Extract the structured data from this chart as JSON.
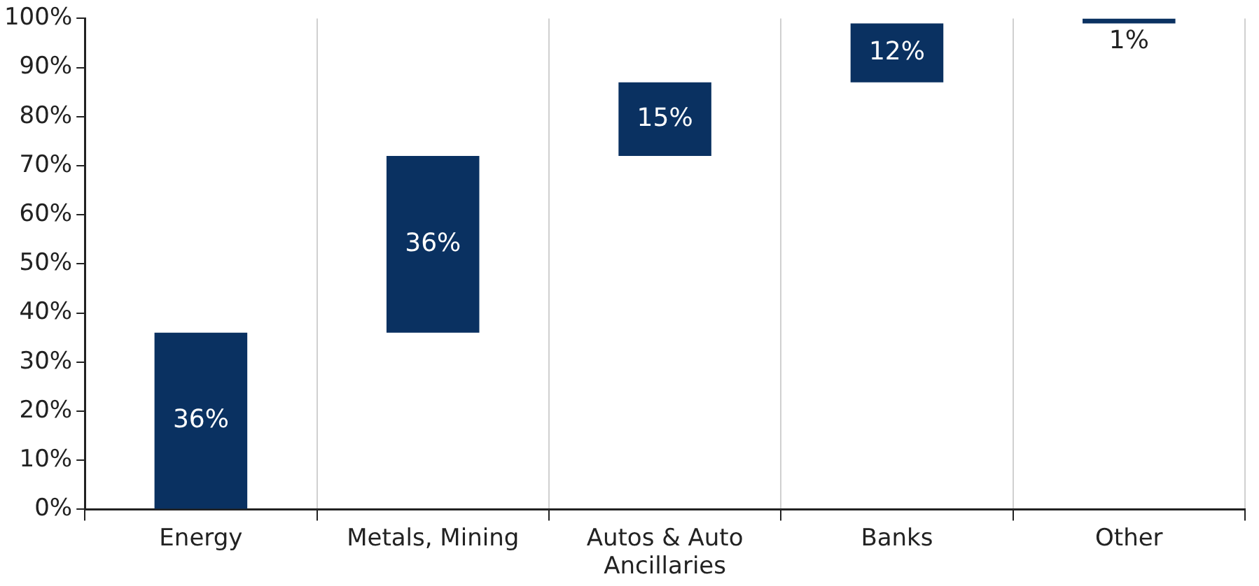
{
  "chart_data": {
    "type": "bar",
    "categories": [
      "Energy",
      "Metals, Mining",
      "Autos & Auto Ancillaries",
      "Banks",
      "Other"
    ],
    "base": [
      0,
      36,
      72,
      87,
      99
    ],
    "values": [
      36,
      36,
      15,
      12,
      1
    ],
    "color": "#0a3161",
    "value_labels": [
      "36%",
      "36%",
      "15%",
      "12%",
      "1%"
    ],
    "ylim": [
      0,
      100
    ],
    "yticks": [
      {
        "value": 0,
        "label": "0%"
      },
      {
        "value": 10,
        "label": "10%"
      },
      {
        "value": 20,
        "label": "20%"
      },
      {
        "value": 30,
        "label": "30%"
      },
      {
        "value": 40,
        "label": "40%"
      },
      {
        "value": 50,
        "label": "50%"
      },
      {
        "value": 60,
        "label": "60%"
      },
      {
        "value": 70,
        "label": "70%"
      },
      {
        "value": 80,
        "label": "80%"
      },
      {
        "value": 90,
        "label": "90%"
      },
      {
        "value": 100,
        "label": "100%"
      }
    ],
    "grid": "x",
    "legend": false
  }
}
